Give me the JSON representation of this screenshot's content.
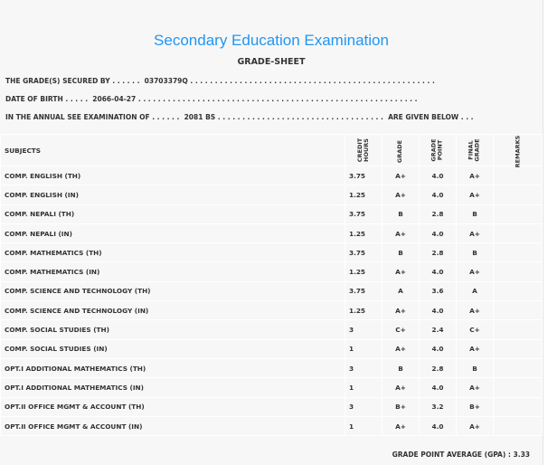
{
  "title": "Secondary Education Examination",
  "subtitle": "GRADE-SHEET",
  "lines": {
    "secured": "THE GRADE(S) SECURED BY . . . . . .  03703379Q . . . . . . . . . . . . . . . . . . . . . . . . . . . . . . . . . . . . . . . . . . . . . . . . . .",
    "dob": "DATE OF BIRTH . . . . .  2066-04-27 . . . . . . . . . . . . . . . . . . . . . . . . . . . . . . . . . . . . . . . . . . . . . . . . . . . . . . . . .",
    "exam": "IN THE ANNUAL SEE EXAMINATION OF . . . . . .  2081 BS . . . . . . . . . . . . . . . . . . . . . . . . . . . . . . . . . .  ARE GIVEN BELOW . . ."
  },
  "headers": {
    "subjects": "SUBJECTS",
    "credit": "CREDIT\nHOURS",
    "grade": "GRADE",
    "point": "GRADE\nPOINT",
    "final": "FINAL\nGRADE",
    "remarks": "REMARKS"
  },
  "rows": [
    {
      "subject": "COMP. ENGLISH (TH)",
      "credit": "3.75",
      "grade": "A+",
      "point": "4.0",
      "final": "A+"
    },
    {
      "subject": "COMP. ENGLISH (IN)",
      "credit": "1.25",
      "grade": "A+",
      "point": "4.0",
      "final": "A+"
    },
    {
      "subject": "COMP. NEPALI (TH)",
      "credit": "3.75",
      "grade": "B",
      "point": "2.8",
      "final": "B"
    },
    {
      "subject": "COMP. NEPALI (IN)",
      "credit": "1.25",
      "grade": "A+",
      "point": "4.0",
      "final": "A+"
    },
    {
      "subject": "COMP. MATHEMATICS (TH)",
      "credit": "3.75",
      "grade": "B",
      "point": "2.8",
      "final": "B"
    },
    {
      "subject": "COMP. MATHEMATICS (IN)",
      "credit": "1.25",
      "grade": "A+",
      "point": "4.0",
      "final": "A+"
    },
    {
      "subject": "COMP. SCIENCE AND TECHNOLOGY (TH)",
      "credit": "3.75",
      "grade": "A",
      "point": "3.6",
      "final": "A"
    },
    {
      "subject": "COMP. SCIENCE AND TECHNOLOGY (IN)",
      "credit": "1.25",
      "grade": "A+",
      "point": "4.0",
      "final": "A+"
    },
    {
      "subject": "COMP. SOCIAL STUDIES (TH)",
      "credit": "3",
      "grade": "C+",
      "point": "2.4",
      "final": "C+"
    },
    {
      "subject": "COMP. SOCIAL STUDIES (IN)",
      "credit": "1",
      "grade": "A+",
      "point": "4.0",
      "final": "A+"
    },
    {
      "subject": "OPT.I ADDITIONAL MATHEMATICS (TH)",
      "credit": "3",
      "grade": "B",
      "point": "2.8",
      "final": "B"
    },
    {
      "subject": "OPT.I ADDITIONAL MATHEMATICS (IN)",
      "credit": "1",
      "grade": "A+",
      "point": "4.0",
      "final": "A+"
    },
    {
      "subject": "OPT.II OFFICE MGMT & ACCOUNT (TH)",
      "credit": "3",
      "grade": "B+",
      "point": "3.2",
      "final": "B+"
    },
    {
      "subject": "OPT.II OFFICE MGMT & ACCOUNT (IN)",
      "credit": "1",
      "grade": "A+",
      "point": "4.0",
      "final": "A+"
    }
  ],
  "gpa": "GRADE POINT AVERAGE (GPA) : 3.33"
}
